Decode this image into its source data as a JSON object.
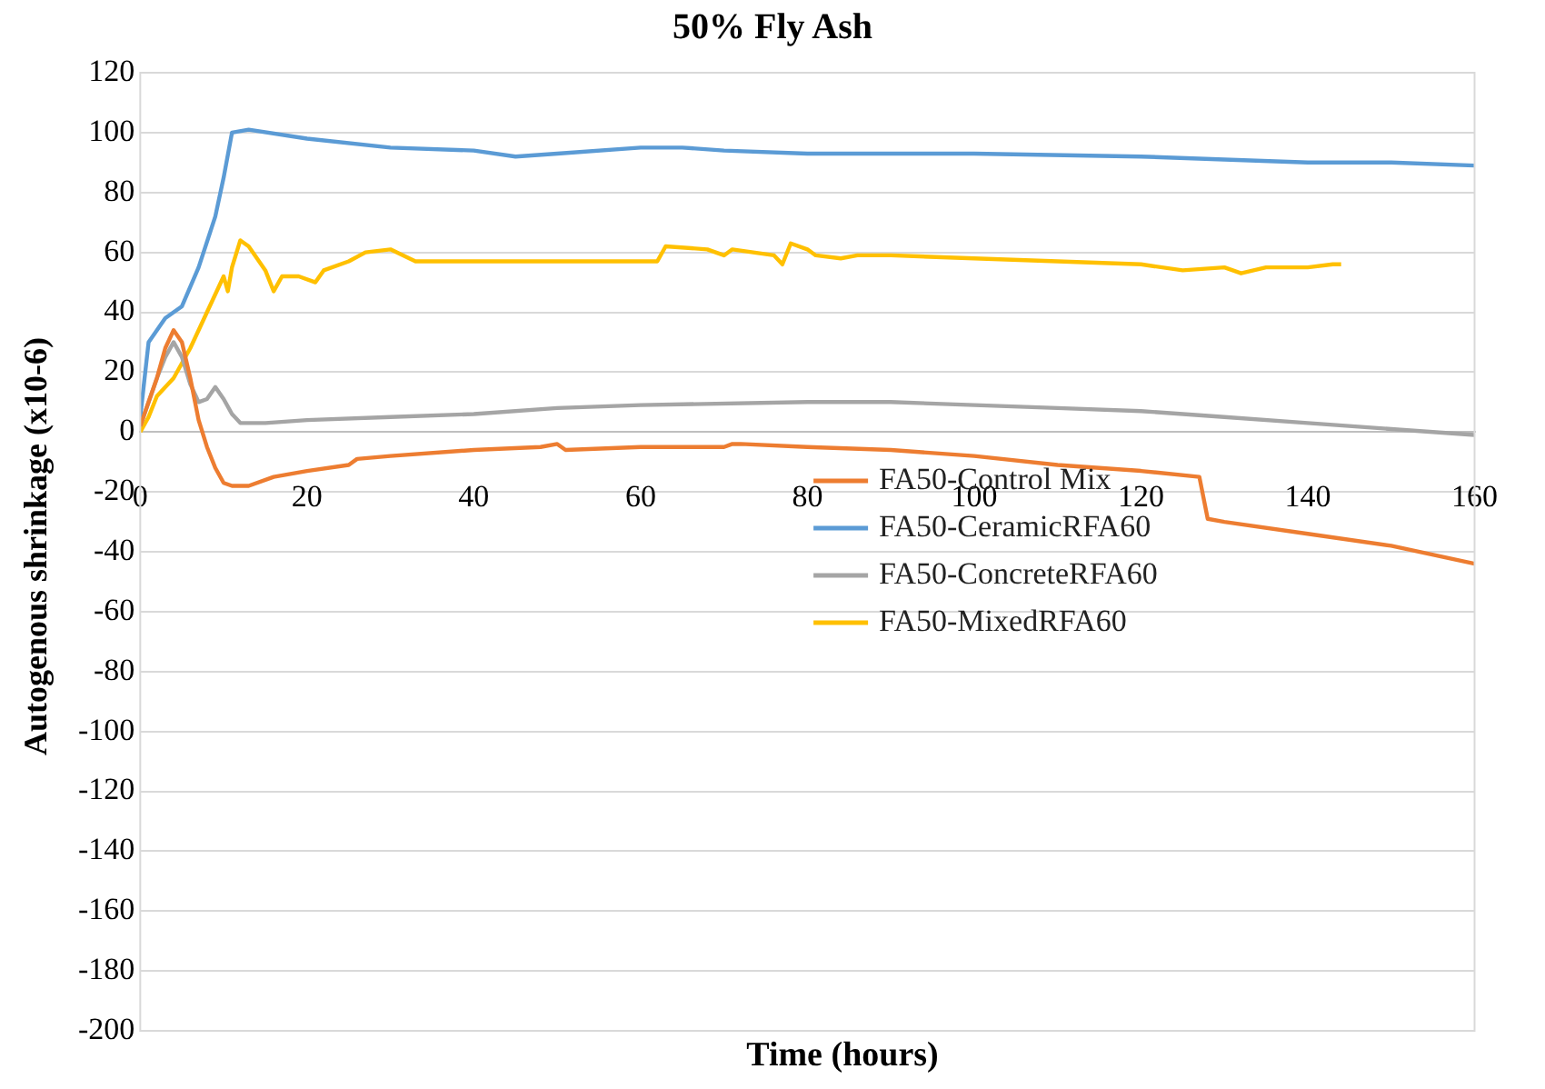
{
  "chart_data": {
    "type": "line",
    "title": "50% Fly Ash",
    "xlabel": "Time (hours)",
    "ylabel": "Autogenous shrinkage  (x10-6)",
    "xlim": [
      0,
      160
    ],
    "xticks": [
      0,
      20,
      40,
      60,
      80,
      100,
      120,
      140,
      160
    ],
    "ylim": [
      -200,
      120
    ],
    "yticks": [
      -200,
      -180,
      -160,
      -140,
      -120,
      -100,
      -80,
      -60,
      -40,
      -20,
      0,
      20,
      40,
      60,
      80,
      100,
      120
    ],
    "grid": "y",
    "legend": "center",
    "marker": "none",
    "line_style": "solid",
    "series": [
      {
        "name": "FA50-Control Mix",
        "color": "#ed7d31",
        "x": [
          0,
          1,
          2,
          3,
          4,
          5,
          6,
          7,
          8,
          9,
          10,
          11,
          13,
          16,
          20,
          25,
          26,
          30,
          40,
          48,
          50,
          51,
          60,
          70,
          71,
          72,
          80,
          90,
          100,
          110,
          120,
          127,
          128,
          130,
          140,
          150,
          160
        ],
        "values": [
          2,
          10,
          18,
          28,
          34,
          30,
          18,
          4,
          -5,
          -12,
          -17,
          -18,
          -18,
          -15,
          -13,
          -11,
          -9,
          -8,
          -6,
          -5,
          -4,
          -6,
          -5,
          -5,
          -4,
          -4,
          -5,
          -6,
          -8,
          -11,
          -13,
          -15,
          -29,
          -30,
          -34,
          -38,
          -44
        ]
      },
      {
        "name": "FA50-CeramicRFA60",
        "color": "#5b9bd5",
        "x": [
          0,
          1,
          2,
          3,
          5,
          7,
          9,
          10,
          11,
          13,
          20,
          30,
          40,
          45,
          50,
          60,
          65,
          70,
          80,
          100,
          120,
          130,
          140,
          150,
          160
        ],
        "values": [
          5,
          30,
          34,
          38,
          42,
          55,
          72,
          85,
          100,
          101,
          98,
          95,
          94,
          92,
          93,
          95,
          95,
          94,
          93,
          93,
          92,
          91,
          90,
          90,
          89
        ]
      },
      {
        "name": "FA50-ConcreteRFA60",
        "color": "#a5a5a5",
        "x": [
          0,
          1,
          2,
          3,
          4,
          5,
          6,
          7,
          8,
          9,
          10,
          11,
          12,
          15,
          20,
          30,
          40,
          50,
          60,
          80,
          90,
          100,
          110,
          120,
          130,
          140,
          150,
          160
        ],
        "values": [
          2,
          null,
          18,
          25,
          30,
          25,
          16,
          10,
          11,
          15,
          11,
          6,
          3,
          3,
          4,
          5,
          6,
          8,
          9,
          10,
          10,
          9,
          8,
          7,
          5,
          3,
          1,
          -1
        ]
      },
      {
        "name": "FA50-MixedRFA60",
        "color": "#ffc000",
        "x": [
          0,
          1,
          2,
          4,
          6,
          8,
          10,
          10.5,
          11,
          12,
          13,
          15,
          16,
          17,
          19,
          21,
          22,
          25,
          27,
          30,
          33,
          36,
          40,
          60,
          62,
          63,
          68,
          70,
          71,
          76,
          77,
          78,
          80,
          81,
          84,
          86,
          90,
          100,
          110,
          120,
          125,
          130,
          132,
          135,
          140,
          143,
          144
        ],
        "values": [
          0,
          5,
          12,
          18,
          28,
          40,
          52,
          47,
          55,
          64,
          62,
          54,
          47,
          52,
          52,
          50,
          54,
          57,
          60,
          61,
          57,
          57,
          57,
          57,
          57,
          62,
          61,
          59,
          61,
          59,
          56,
          63,
          61,
          59,
          58,
          59,
          59,
          58,
          57,
          56,
          54,
          55,
          53,
          55,
          55,
          56,
          56
        ]
      }
    ]
  }
}
